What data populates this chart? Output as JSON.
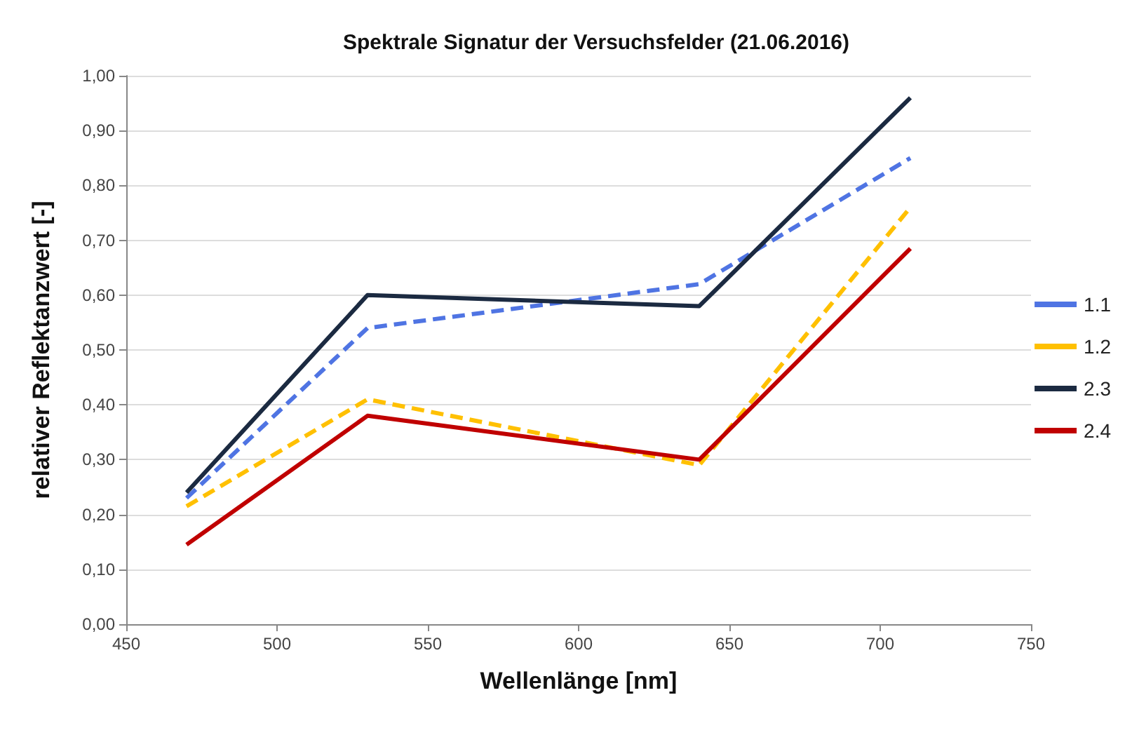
{
  "chart_data": {
    "type": "line",
    "title": "Spektrale Signatur der Versuchsfelder (21.06.2016)",
    "xlabel": "Wellenlänge [nm]",
    "ylabel": "relativer Reflektanzwert [-]",
    "x": [
      470,
      530,
      640,
      710
    ],
    "series": [
      {
        "name": "1.1",
        "color": "#4f74e3",
        "line_style": "dashed",
        "values": [
          0.23,
          0.54,
          0.62,
          0.85
        ]
      },
      {
        "name": "1.2",
        "color": "#ffc000",
        "line_style": "dashed",
        "values": [
          0.215,
          0.41,
          0.29,
          0.76
        ]
      },
      {
        "name": "2.3",
        "color": "#1b2a41",
        "line_style": "solid",
        "values": [
          0.24,
          0.6,
          0.58,
          0.96
        ]
      },
      {
        "name": "2.4",
        "color": "#c00000",
        "line_style": "solid",
        "values": [
          0.145,
          0.38,
          0.3,
          0.685
        ]
      }
    ],
    "xlim": [
      450,
      750
    ],
    "xticks": [
      450,
      500,
      550,
      600,
      650,
      700,
      750
    ],
    "ylim": [
      0,
      1
    ],
    "yticks": [
      {
        "value": 0,
        "label": "0,00"
      },
      {
        "value": 0.1,
        "label": "0,10"
      },
      {
        "value": 0.2,
        "label": "0,20"
      },
      {
        "value": 0.3,
        "label": "0,30"
      },
      {
        "value": 0.4,
        "label": "0,40"
      },
      {
        "value": 0.5,
        "label": "0,50"
      },
      {
        "value": 0.6,
        "label": "0,60"
      },
      {
        "value": 0.7,
        "label": "0,70"
      },
      {
        "value": 0.8,
        "label": "0,80"
      },
      {
        "value": 0.9,
        "label": "0,90"
      },
      {
        "value": 1,
        "label": "1,00"
      }
    ],
    "grid": "y",
    "legend": "right",
    "marker": "none"
  }
}
